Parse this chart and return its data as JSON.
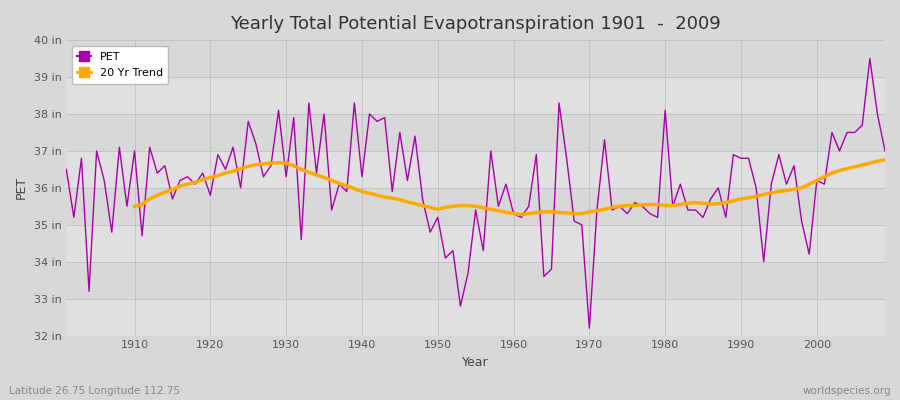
{
  "title": "Yearly Total Potential Evapotranspiration 1901  -  2009",
  "xlabel": "Year",
  "ylabel": "PET",
  "bottom_left_label": "Latitude 26.75 Longitude 112.75",
  "bottom_right_label": "worldspecies.org",
  "background_color": "#d8d8d8",
  "plot_bg_color": "#e8e8e8",
  "stripe_color_a": "#e0e0e0",
  "stripe_color_b": "#d8d8d8",
  "pet_color": "#aa00aa",
  "trend_color": "#ffaa00",
  "ylim": [
    32,
    40
  ],
  "xlim": [
    1901,
    2009
  ],
  "ytick_labels": [
    "32 in",
    "33 in",
    "34 in",
    "35 in",
    "36 in",
    "37 in",
    "38 in",
    "39 in",
    "40 in"
  ],
  "ytick_values": [
    32,
    33,
    34,
    35,
    36,
    37,
    38,
    39,
    40
  ],
  "xtick_values": [
    1910,
    1920,
    1930,
    1940,
    1950,
    1960,
    1970,
    1980,
    1990,
    2000
  ],
  "years": [
    1901,
    1902,
    1903,
    1904,
    1905,
    1906,
    1907,
    1908,
    1909,
    1910,
    1911,
    1912,
    1913,
    1914,
    1915,
    1916,
    1917,
    1918,
    1919,
    1920,
    1921,
    1922,
    1923,
    1924,
    1925,
    1926,
    1927,
    1928,
    1929,
    1930,
    1931,
    1932,
    1933,
    1934,
    1935,
    1936,
    1937,
    1938,
    1939,
    1940,
    1941,
    1942,
    1943,
    1944,
    1945,
    1946,
    1947,
    1948,
    1949,
    1950,
    1951,
    1952,
    1953,
    1954,
    1955,
    1956,
    1957,
    1958,
    1959,
    1960,
    1961,
    1962,
    1963,
    1964,
    1965,
    1966,
    1967,
    1968,
    1969,
    1970,
    1971,
    1972,
    1973,
    1974,
    1975,
    1976,
    1977,
    1978,
    1979,
    1980,
    1981,
    1982,
    1983,
    1984,
    1985,
    1986,
    1987,
    1988,
    1989,
    1990,
    1991,
    1992,
    1993,
    1994,
    1995,
    1996,
    1997,
    1998,
    1999,
    2000,
    2001,
    2002,
    2003,
    2004,
    2005,
    2006,
    2007,
    2008,
    2009
  ],
  "pet_values": [
    36.5,
    35.2,
    36.8,
    33.2,
    37.0,
    36.2,
    34.8,
    37.1,
    35.5,
    37.0,
    34.7,
    37.1,
    36.4,
    36.6,
    35.7,
    36.2,
    36.3,
    36.1,
    36.4,
    35.8,
    36.9,
    36.5,
    37.1,
    36.0,
    37.8,
    37.2,
    36.3,
    36.6,
    38.1,
    36.3,
    37.9,
    34.6,
    38.3,
    36.4,
    38.0,
    35.4,
    36.1,
    35.9,
    38.3,
    36.3,
    38.0,
    37.8,
    37.9,
    35.9,
    37.5,
    36.2,
    37.4,
    35.7,
    34.8,
    35.2,
    34.1,
    34.3,
    32.8,
    33.7,
    35.4,
    34.3,
    37.0,
    35.5,
    36.1,
    35.3,
    35.2,
    35.5,
    36.9,
    33.6,
    33.8,
    38.3,
    36.8,
    35.1,
    35.0,
    32.2,
    35.4,
    37.3,
    35.4,
    35.5,
    35.3,
    35.6,
    35.5,
    35.3,
    35.2,
    38.1,
    35.5,
    36.1,
    35.4,
    35.4,
    35.2,
    35.7,
    36.0,
    35.2,
    36.9,
    36.8,
    36.8,
    36.0,
    34.0,
    36.1,
    36.9,
    36.1,
    36.6,
    35.1,
    34.2,
    36.2,
    36.1,
    37.5,
    37.0,
    37.5,
    37.5,
    37.7,
    39.5,
    38.0,
    37.0
  ],
  "trend_years": [
    1910,
    1911,
    1912,
    1913,
    1914,
    1915,
    1916,
    1917,
    1918,
    1919,
    1920,
    1921,
    1922,
    1923,
    1924,
    1925,
    1926,
    1927,
    1928,
    1929,
    1930,
    1931,
    1932,
    1933,
    1934,
    1935,
    1936,
    1937,
    1938,
    1939,
    1940,
    1941,
    1942,
    1943,
    1944,
    1945,
    1946,
    1947,
    1948,
    1949,
    1950,
    1951,
    1952,
    1953,
    1954,
    1955,
    1956,
    1957,
    1958,
    1959,
    1960,
    1961,
    1962,
    1963,
    1964,
    1965,
    1966,
    1967,
    1968,
    1969,
    1970,
    1971,
    1972,
    1973,
    1974,
    1975,
    1976,
    1977,
    1978,
    1979,
    1980,
    1981,
    1982,
    1983,
    1984,
    1985,
    1986,
    1987,
    1988,
    1989,
    1990,
    1991,
    1992,
    1993,
    1994,
    1995,
    1996,
    1997,
    1998,
    1999,
    2000,
    2001,
    2002,
    2003,
    2004,
    2005,
    2006,
    2007,
    2008,
    2009
  ],
  "trend_values": [
    35.5,
    35.55,
    35.7,
    35.8,
    35.88,
    35.95,
    36.05,
    36.1,
    36.15,
    36.22,
    36.28,
    36.33,
    36.4,
    36.45,
    36.52,
    36.58,
    36.63,
    36.65,
    36.67,
    36.68,
    36.67,
    36.6,
    36.5,
    36.42,
    36.35,
    36.28,
    36.2,
    36.12,
    36.05,
    35.98,
    35.9,
    35.85,
    35.8,
    35.75,
    35.72,
    35.68,
    35.62,
    35.57,
    35.52,
    35.47,
    35.42,
    35.47,
    35.5,
    35.52,
    35.52,
    35.5,
    35.46,
    35.42,
    35.38,
    35.34,
    35.3,
    35.28,
    35.3,
    35.33,
    35.35,
    35.35,
    35.33,
    35.32,
    35.3,
    35.3,
    35.35,
    35.38,
    35.42,
    35.47,
    35.5,
    35.52,
    35.52,
    35.54,
    35.55,
    35.55,
    35.52,
    35.52,
    35.55,
    35.58,
    35.6,
    35.58,
    35.56,
    35.57,
    35.6,
    35.65,
    35.7,
    35.73,
    35.77,
    35.82,
    35.87,
    35.9,
    35.93,
    35.96,
    36.0,
    36.1,
    36.2,
    36.3,
    36.4,
    36.47,
    36.52,
    36.57,
    36.62,
    36.67,
    36.72,
    36.76
  ]
}
